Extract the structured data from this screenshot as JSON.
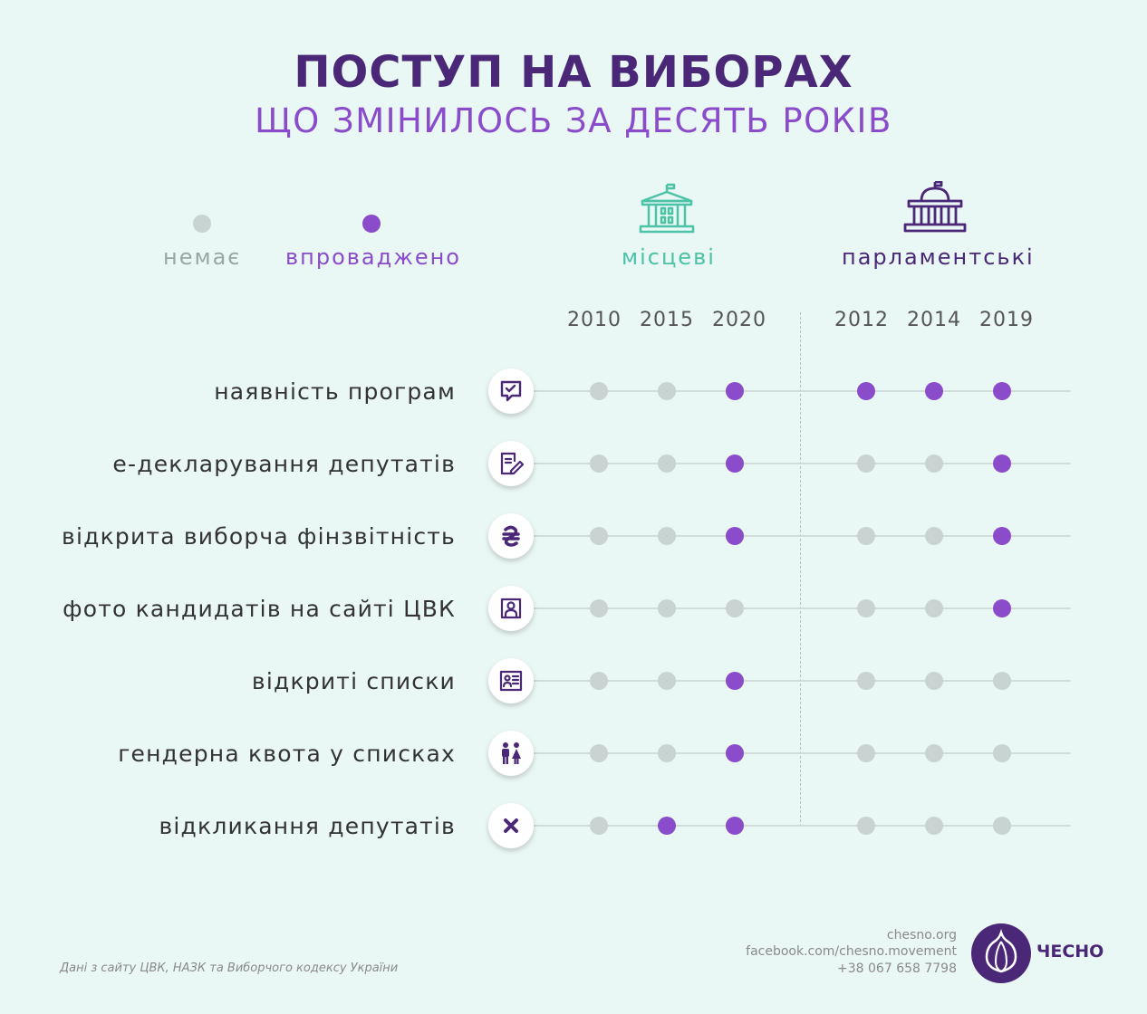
{
  "title": "ПОСТУП НА ВИБОРАХ",
  "subtitle": "ЩО ЗМІНИЛОСЬ ЗА ДЕСЯТЬ РОКІВ",
  "legend": {
    "absent_label": "немає",
    "implemented_label": "впроваджено"
  },
  "colors": {
    "absent": "#c9d4d2",
    "implemented": "#8a4ccb",
    "local": "#4cc2a6",
    "parliament": "#4a2877"
  },
  "groups": {
    "local": {
      "label": "місцеві",
      "icon": "local-building-icon"
    },
    "parliament": {
      "label": "парламентські",
      "icon": "parliament-building-icon"
    }
  },
  "chart_data": {
    "type": "table",
    "title": "ПОСТУП НА ВИБОРАХ",
    "subtitle": "ЩО ЗМІНИЛОСЬ ЗА ДЕСЯТЬ РОКІВ",
    "years": [
      "2010",
      "2015",
      "2020",
      "2012",
      "2014",
      "2019"
    ],
    "year_groups": [
      "місцеві",
      "місцеві",
      "місцеві",
      "парламентські",
      "парламентські",
      "парламентські"
    ],
    "rows": [
      {
        "label": "наявність програм",
        "icon": "speech-check-icon",
        "values": [
          0,
          0,
          1,
          1,
          1,
          1
        ]
      },
      {
        "label": "е-декларування депутатів",
        "icon": "document-pen-icon",
        "values": [
          0,
          0,
          1,
          0,
          0,
          1
        ]
      },
      {
        "label": "відкрита виборча фінзвітність",
        "icon": "hryvnia-icon",
        "values": [
          0,
          0,
          1,
          0,
          0,
          1
        ]
      },
      {
        "label": "фото кандидатів на сайті ЦВК",
        "icon": "photo-portrait-icon",
        "values": [
          0,
          0,
          0,
          0,
          0,
          1
        ]
      },
      {
        "label": "відкриті списки",
        "icon": "person-list-icon",
        "values": [
          0,
          0,
          1,
          0,
          0,
          0
        ]
      },
      {
        "label": "гендерна квота у списках",
        "icon": "man-woman-icon",
        "values": [
          0,
          0,
          1,
          0,
          0,
          0
        ]
      },
      {
        "label": "відкликання депутатів",
        "icon": "cross-icon",
        "values": [
          0,
          1,
          1,
          0,
          0,
          0
        ]
      }
    ]
  },
  "footer": {
    "source": "Дані з сайту ЦВК, НАЗК та Виборчого кодексу України",
    "website": "chesno.org",
    "facebook": "facebook.com/chesno.movement",
    "phone": "+38 067 658 7798",
    "brand": "ЧЕСНО",
    "logo_icon": "garlic-logo-icon"
  }
}
